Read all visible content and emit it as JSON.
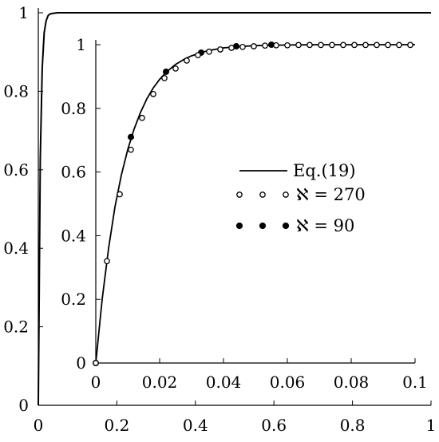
{
  "chart_data": [
    {
      "type": "line",
      "role": "main",
      "xlim": [
        0,
        1
      ],
      "ylim": [
        0,
        1
      ],
      "xticks": [
        0,
        0.2,
        0.4,
        0.6,
        0.8,
        1
      ],
      "xtick_labels": [
        "0",
        "0.2",
        "0.4",
        "0.6",
        "0.8",
        "1"
      ],
      "yticks": [
        0,
        0.2,
        0.4,
        0.6,
        0.8,
        1
      ],
      "ytick_labels": [
        "0",
        "0.2",
        "0.4",
        "0.6",
        "0.8",
        "1"
      ],
      "grid": false,
      "series": [
        {
          "name": "Eq.(19)",
          "style": "solid",
          "x": [
            0,
            0.005,
            0.01,
            0.015,
            0.02,
            0.025,
            0.03,
            0.04,
            0.05,
            0.06,
            0.08,
            0.1,
            0.2,
            0.4,
            0.6,
            0.8,
            1
          ],
          "y": [
            0,
            0.63,
            0.86,
            0.95,
            0.98,
            0.993,
            0.997,
            0.999,
            1,
            1,
            1,
            1,
            1,
            1,
            1,
            1,
            1
          ]
        }
      ]
    },
    {
      "type": "line",
      "role": "inset",
      "xlim": [
        0,
        0.1
      ],
      "ylim": [
        0,
        1
      ],
      "xticks": [
        0,
        0.02,
        0.04,
        0.06,
        0.08,
        0.1
      ],
      "xtick_labels": [
        "0",
        "0.02",
        "0.04",
        "0.06",
        "0.08",
        "0.1"
      ],
      "yticks": [
        0,
        0.2,
        0.4,
        0.6,
        0.8,
        1
      ],
      "ytick_labels": [
        "0",
        "0.2",
        "0.4",
        "0.6",
        "0.8",
        "1"
      ],
      "grid": false,
      "legend_position": "right",
      "series": [
        {
          "name": "Eq.(19)",
          "style": "solid",
          "x": [
            0,
            0.002,
            0.004,
            0.006,
            0.008,
            0.01,
            0.012,
            0.014,
            0.016,
            0.018,
            0.02,
            0.022,
            0.025,
            0.028,
            0.03,
            0.035,
            0.04,
            0.045,
            0.05,
            0.06,
            0.07,
            0.08,
            0.09,
            0.1
          ],
          "y": [
            0,
            0.2,
            0.36,
            0.49,
            0.59,
            0.67,
            0.735,
            0.787,
            0.83,
            0.864,
            0.891,
            0.913,
            0.938,
            0.956,
            0.965,
            0.981,
            0.99,
            0.994,
            0.997,
            0.999,
            1,
            1,
            1,
            1
          ]
        },
        {
          "name": "ℵ = 270",
          "marker": "open-circle",
          "x": [
            0,
            0.0035,
            0.0075,
            0.011,
            0.0145,
            0.018,
            0.0215,
            0.025,
            0.0285,
            0.032,
            0.0355,
            0.039,
            0.0425,
            0.046,
            0.0495,
            0.053,
            0.0565,
            0.06,
            0.0635,
            0.067,
            0.0705,
            0.074,
            0.0775,
            0.081,
            0.0845,
            0.088,
            0.0915,
            0.095,
            0.0985
          ],
          "y": [
            0,
            0.32,
            0.53,
            0.67,
            0.77,
            0.845,
            0.895,
            0.925,
            0.95,
            0.967,
            0.978,
            0.985,
            0.99,
            0.993,
            0.995,
            0.997,
            0.998,
            0.998,
            0.999,
            0.999,
            0.999,
            0.999,
            0.999,
            0.999,
            0.999,
            0.999,
            0.999,
            0.999,
            0.999
          ]
        },
        {
          "name": "ℵ = 90",
          "marker": "filled-circle",
          "x": [
            0,
            0.011,
            0.022,
            0.033,
            0.044,
            0.055
          ],
          "y": [
            0,
            0.71,
            0.915,
            0.975,
            0.995,
            1
          ]
        }
      ]
    }
  ]
}
